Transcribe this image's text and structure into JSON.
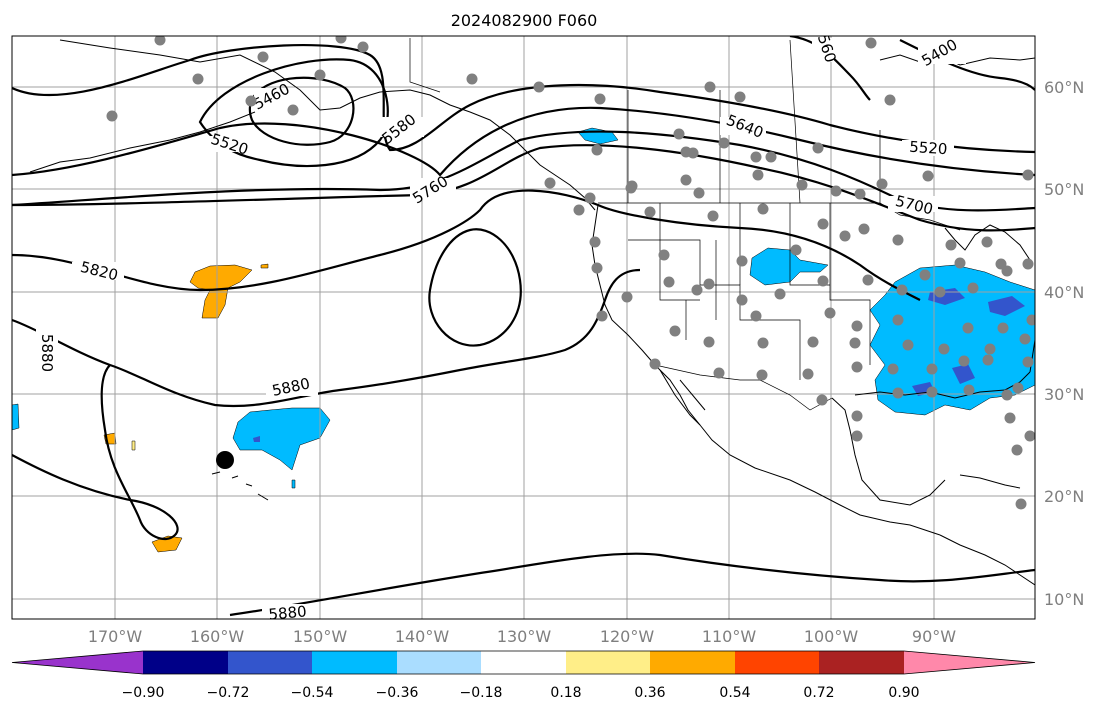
{
  "title": "2024082900 F060",
  "lat_labels": [
    "60°N",
    "50°N",
    "40°N",
    "30°N",
    "20°N",
    "10°N"
  ],
  "lon_labels": [
    "170°W",
    "160°W",
    "150°W",
    "140°W",
    "130°W",
    "120°W",
    "110°W",
    "100°W",
    "90°W"
  ],
  "contour_labels": [
    "5460",
    "5520",
    "5580",
    "5640",
    "5760",
    "5700",
    "5820",
    "5880",
    "5880",
    "5880",
    "5520",
    "5400",
    "560"
  ],
  "colorbar": {
    "tick_labels": [
      "−0.90",
      "−0.72",
      "−0.54",
      "−0.36",
      "−0.18",
      "0.18",
      "0.36",
      "0.54",
      "0.72",
      "0.90"
    ],
    "colors": [
      "#9933cc",
      "#000088",
      "#3355cc",
      "#00bbff",
      "#aaddff",
      "#ffffff",
      "#ffee88",
      "#ffaa00",
      "#ff4400",
      "#aa2222",
      "#ff88aa"
    ]
  },
  "marker_color": "#000000",
  "station_color": "#808080"
}
